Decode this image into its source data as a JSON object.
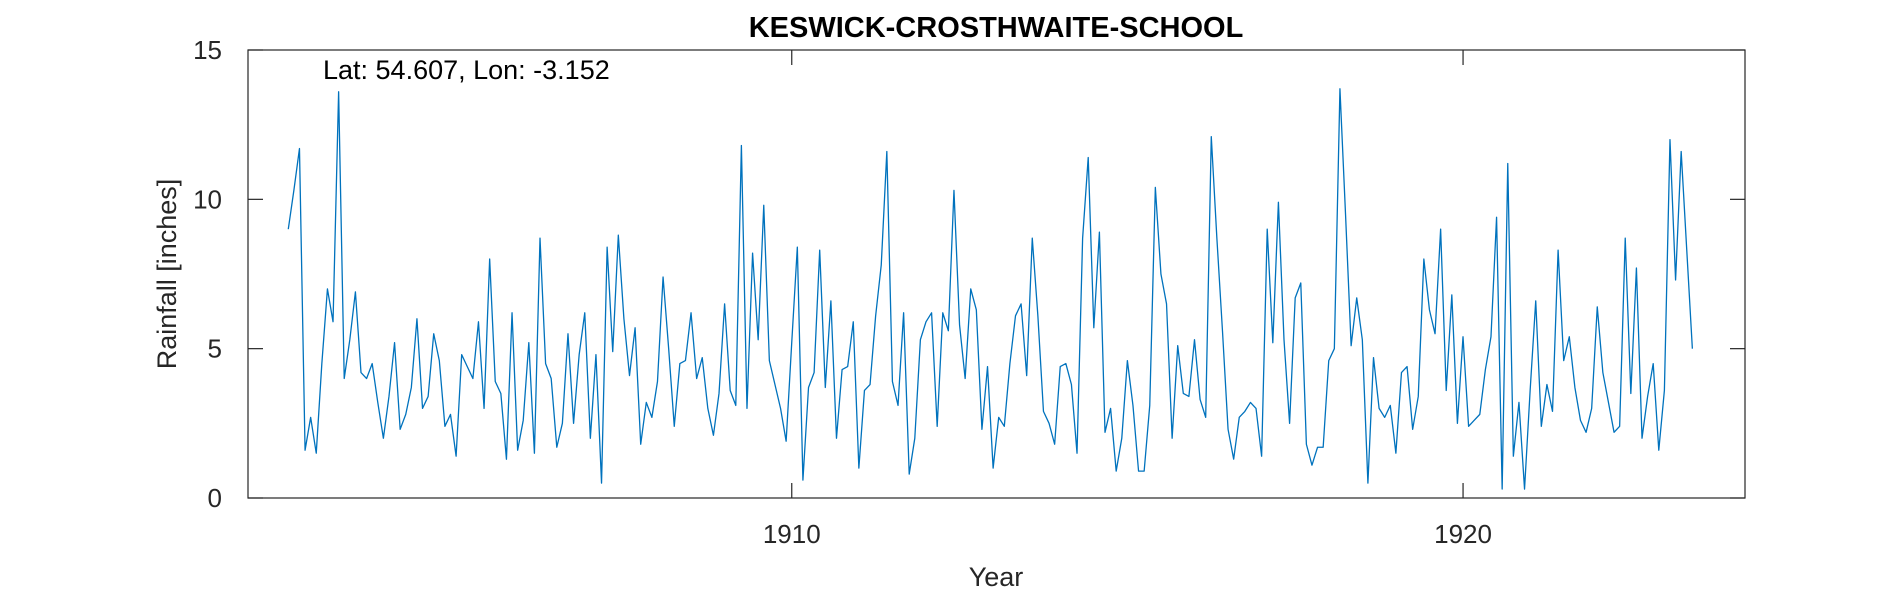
{
  "chart_data": {
    "type": "line",
    "title": "KESWICK-CROSTHWAITE-SCHOOL",
    "annotation": "Lat: 54.607, Lon: -3.152",
    "xlabel": "Year",
    "ylabel": "Rainfall [inches]",
    "xlim": [
      1901.9,
      1924.2
    ],
    "ylim": [
      0,
      15
    ],
    "xticks": [
      1910,
      1920
    ],
    "xtick_labels": [
      "1910",
      "1920"
    ],
    "yticks": [
      0,
      5,
      10,
      15
    ],
    "ytick_labels": [
      "0",
      "5",
      "10",
      "15"
    ],
    "grid": false,
    "line_color": "#0072BD",
    "series": [
      {
        "x_start": 1902.5,
        "x_step": 0.08333,
        "values": [
          9.0,
          10.3,
          11.7,
          1.6,
          2.7,
          1.5,
          4.5,
          7.0,
          5.9,
          13.6,
          4.0,
          5.3,
          6.9,
          4.2,
          4.0,
          4.5,
          3.2,
          2.0,
          3.4,
          5.2,
          2.3,
          2.8,
          3.7,
          6.0,
          3.0,
          3.4,
          5.5,
          4.6,
          2.4,
          2.8,
          1.4,
          4.8,
          4.4,
          4.0,
          5.9,
          3.0,
          8.0,
          3.9,
          3.5,
          1.3,
          6.2,
          1.6,
          2.6,
          5.2,
          1.5,
          8.7,
          4.5,
          4.0,
          1.7,
          2.5,
          5.5,
          2.5,
          4.8,
          6.2,
          2.0,
          4.8,
          0.5,
          8.4,
          4.9,
          8.8,
          6.0,
          4.1,
          5.7,
          1.8,
          3.2,
          2.7,
          3.9,
          7.4,
          5.0,
          2.4,
          4.5,
          4.6,
          6.2,
          4.0,
          4.7,
          3.0,
          2.1,
          3.5,
          6.5,
          3.6,
          3.1,
          11.8,
          3.0,
          8.2,
          5.3,
          9.8,
          4.6,
          3.8,
          3.0,
          1.9,
          5.2,
          8.4,
          0.6,
          3.7,
          4.2,
          8.3,
          3.7,
          6.6,
          2.0,
          4.3,
          4.4,
          5.9,
          1.0,
          3.6,
          3.8,
          6.1,
          7.8,
          11.6,
          3.9,
          3.1,
          6.2,
          0.8,
          2.0,
          5.3,
          5.9,
          6.2,
          2.4,
          6.2,
          5.6,
          10.3,
          5.8,
          4.0,
          7.0,
          6.3,
          2.3,
          4.4,
          1.0,
          2.7,
          2.4,
          4.5,
          6.1,
          6.5,
          4.1,
          8.7,
          6.1,
          2.9,
          2.5,
          1.8,
          4.4,
          4.5,
          3.8,
          1.5,
          8.7,
          11.4,
          5.7,
          8.9,
          2.2,
          3.0,
          0.9,
          2.0,
          4.6,
          3.1,
          0.9,
          0.9,
          3.1,
          10.4,
          7.5,
          6.5,
          2.0,
          5.1,
          3.5,
          3.4,
          5.3,
          3.3,
          2.7,
          12.1,
          8.7,
          5.6,
          2.3,
          1.3,
          2.7,
          2.9,
          3.2,
          3.0,
          1.4,
          9.0,
          5.2,
          9.9,
          5.3,
          2.5,
          6.7,
          7.2,
          1.8,
          1.1,
          1.7,
          1.7,
          4.6,
          5.0,
          13.7,
          9.5,
          5.1,
          6.7,
          5.3,
          0.5,
          4.7,
          3.0,
          2.7,
          3.1,
          1.5,
          4.2,
          4.4,
          2.3,
          3.4,
          8.0,
          6.3,
          5.5,
          9.0,
          3.6,
          6.8,
          2.5,
          5.4,
          2.4,
          2.6,
          2.8,
          4.3,
          5.4,
          9.4,
          0.3,
          11.2,
          1.4,
          3.2,
          0.3,
          3.6,
          6.6,
          2.4,
          3.8,
          2.9,
          8.3,
          4.6,
          5.4,
          3.7,
          2.6,
          2.2,
          3.0,
          6.4,
          4.2,
          3.2,
          2.2,
          2.4,
          8.7,
          3.5,
          7.7,
          2.0,
          3.4,
          4.5,
          1.6,
          3.6,
          12.0,
          7.3,
          11.6,
          8.3,
          5.0
        ]
      }
    ]
  }
}
